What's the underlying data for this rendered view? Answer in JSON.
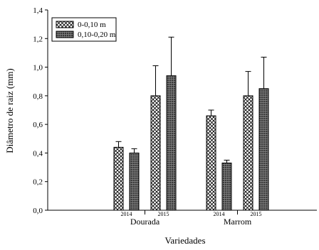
{
  "chart_data": {
    "type": "bar",
    "ylabel": "Diâmetro de raiz (mm)",
    "xlabel": "Variedades",
    "ylim": [
      0,
      1.4
    ],
    "yticks": [
      "0,0",
      "0,2",
      "0,4",
      "0,6",
      "0,8",
      "1,0",
      "1,2",
      "1,4"
    ],
    "grid": false,
    "legend_position": "top-left",
    "groups": [
      {
        "name": "Dourada",
        "years": [
          {
            "year": "2014",
            "values": [
              0.44,
              0.4
            ],
            "errors": [
              0.04,
              0.03
            ]
          },
          {
            "year": "2015",
            "values": [
              0.8,
              0.94
            ],
            "errors": [
              0.21,
              0.27
            ]
          }
        ]
      },
      {
        "name": "Marrom",
        "years": [
          {
            "year": "2014",
            "values": [
              0.66,
              0.33
            ],
            "errors": [
              0.04,
              0.02
            ]
          },
          {
            "year": "2015",
            "values": [
              0.8,
              0.85
            ],
            "errors": [
              0.17,
              0.22
            ]
          }
        ]
      }
    ],
    "series": [
      {
        "name": "0-0,10 m",
        "pattern": "crosshatch",
        "color": "#000000"
      },
      {
        "name": "0,10-0,20 m",
        "pattern": "dark-grid",
        "color": "#333333"
      }
    ]
  }
}
